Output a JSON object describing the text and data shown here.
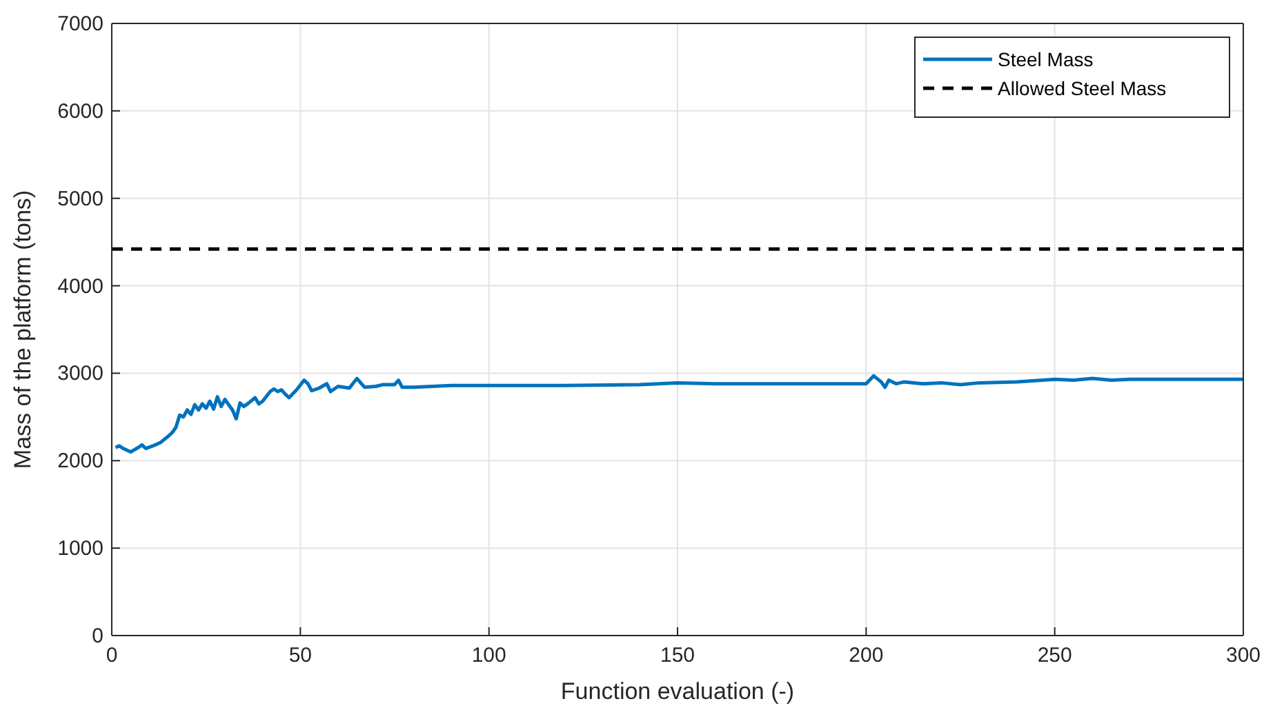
{
  "chart_data": {
    "type": "line",
    "xlabel": "Function evaluation (-)",
    "ylabel": "Mass of the platform (tons)",
    "xlim": [
      0,
      300
    ],
    "xticks": [
      0,
      50,
      100,
      150,
      200,
      250,
      300
    ],
    "ylim": [
      0,
      7000
    ],
    "yticks": [
      0,
      1000,
      2000,
      3000,
      4000,
      5000,
      6000,
      7000
    ],
    "grid": true,
    "legend": "top right",
    "line_style": "solid",
    "series": [
      {
        "name": "Steel Mass",
        "color": "#0072bd",
        "x": [
          1,
          2,
          3,
          5,
          7,
          8,
          9,
          11,
          13,
          15,
          16,
          17,
          18,
          19,
          20,
          21,
          22,
          23,
          24,
          25,
          26,
          27,
          28,
          29,
          30,
          31,
          32,
          33,
          34,
          35,
          36,
          38,
          39,
          40,
          42,
          43,
          44,
          45,
          46,
          47,
          49,
          51,
          52,
          53,
          55,
          57,
          58,
          60,
          63,
          65,
          67,
          70,
          72,
          75,
          76,
          77,
          80,
          85,
          90,
          100,
          120,
          140,
          150,
          160,
          200,
          202,
          204,
          205,
          206,
          208,
          210,
          215,
          220,
          225,
          230,
          240,
          250,
          255,
          260,
          265,
          270,
          300
        ],
        "values": [
          2150,
          2170,
          2140,
          2100,
          2150,
          2180,
          2140,
          2170,
          2210,
          2280,
          2320,
          2380,
          2520,
          2500,
          2580,
          2530,
          2640,
          2580,
          2650,
          2600,
          2680,
          2590,
          2730,
          2620,
          2700,
          2640,
          2580,
          2480,
          2660,
          2620,
          2650,
          2720,
          2650,
          2680,
          2790,
          2820,
          2790,
          2810,
          2760,
          2720,
          2810,
          2920,
          2880,
          2800,
          2830,
          2880,
          2790,
          2850,
          2830,
          2940,
          2840,
          2850,
          2870,
          2870,
          2920,
          2840,
          2840,
          2850,
          2860,
          2860,
          2860,
          2870,
          2890,
          2880,
          2880,
          2970,
          2900,
          2840,
          2920,
          2880,
          2900,
          2880,
          2890,
          2870,
          2890,
          2900,
          2930,
          2920,
          2940,
          2920,
          2930,
          2930
        ]
      }
    ],
    "ref_lines": [
      {
        "axis": "y",
        "value": 4420,
        "label": "Allowed Steel Mass",
        "color": "#000000",
        "line_style": "dashed"
      }
    ]
  }
}
